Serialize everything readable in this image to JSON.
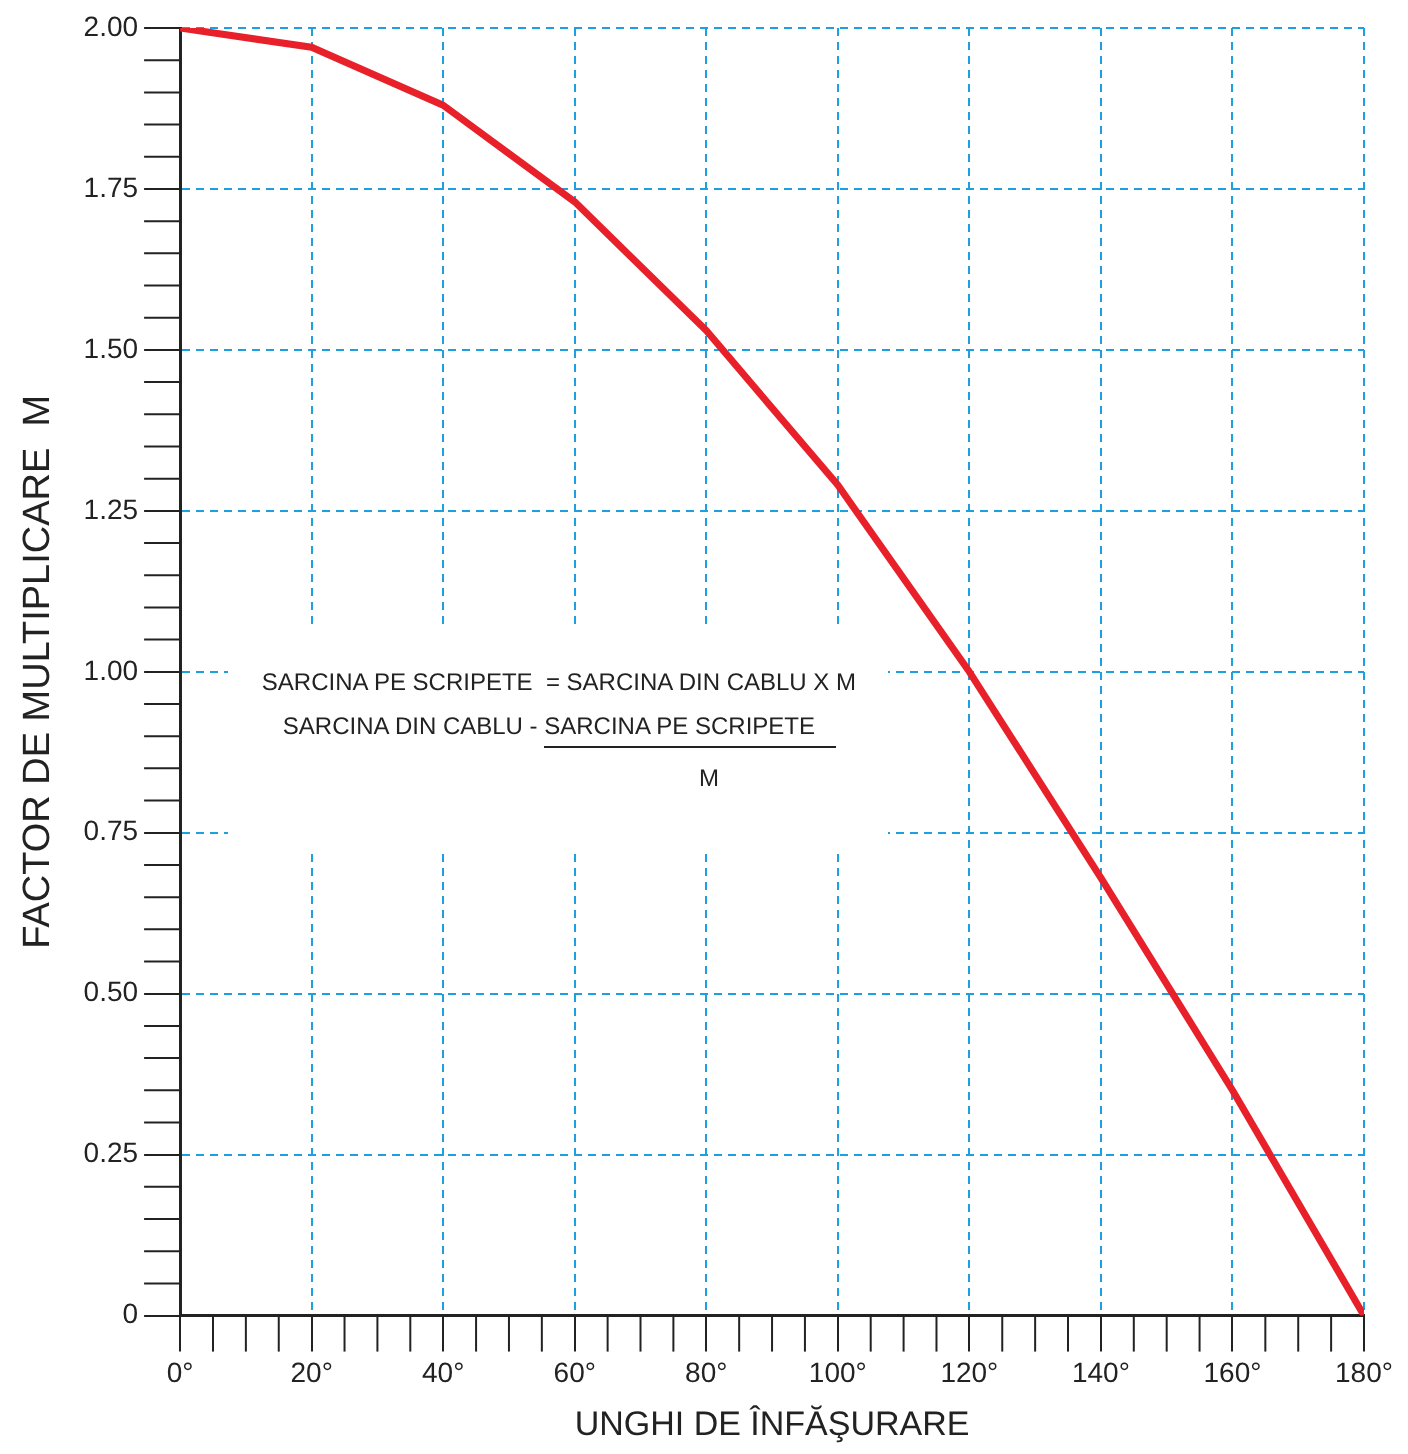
{
  "chart_data": {
    "type": "line",
    "xlabel": "UNGHI DE ÎNFĂŞURARE",
    "ylabel": "FACTOR DE MULTIPLICARE  M",
    "x": [
      0,
      20,
      40,
      60,
      80,
      100,
      120,
      140,
      160,
      180
    ],
    "series": [
      {
        "color": "#e8202a",
        "values": [
          2.0,
          1.97,
          1.88,
          1.73,
          1.53,
          1.29,
          1.0,
          0.68,
          0.35,
          0
        ]
      }
    ],
    "xlim": [
      0,
      180
    ],
    "ylim": [
      0,
      2
    ],
    "xticks": [
      {
        "value": 0,
        "label": "0°"
      },
      {
        "value": 20,
        "label": "20°"
      },
      {
        "value": 40,
        "label": "40°"
      },
      {
        "value": 60,
        "label": "60°"
      },
      {
        "value": 80,
        "label": "80°"
      },
      {
        "value": 100,
        "label": "100°"
      },
      {
        "value": 120,
        "label": "120°"
      },
      {
        "value": 140,
        "label": "140°"
      },
      {
        "value": 160,
        "label": "160°"
      },
      {
        "value": 180,
        "label": "180°"
      }
    ],
    "yticks": [
      0,
      {
        "value": 0.25,
        "label": "0.25"
      },
      {
        "value": 0.5,
        "label": "0.50"
      },
      {
        "value": 0.75,
        "label": "0.75"
      },
      {
        "value": 1,
        "label": "1.00"
      },
      {
        "value": 1.25,
        "label": "1.25"
      },
      {
        "value": 1.5,
        "label": "1.50"
      },
      {
        "value": 1.75,
        "label": "1.75"
      },
      {
        "value": 2,
        "label": "2.00"
      }
    ],
    "grid": true,
    "marker": "none",
    "line_style": "solid",
    "annotations": [
      "SARCINA PE SCRIPETE  = SARCINA DIN CABLU X M",
      "SARCINA DIN CABLU -",
      "SARCINA PE SCRIPETE",
      "M"
    ]
  }
}
